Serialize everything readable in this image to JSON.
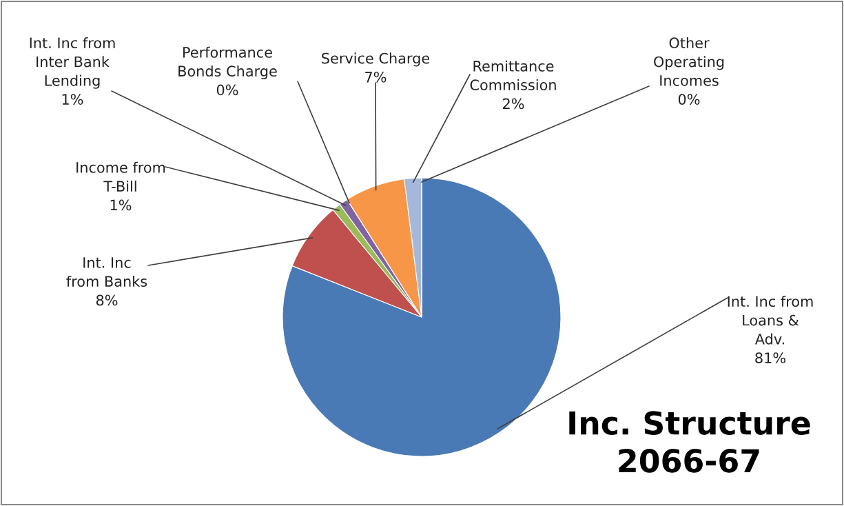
{
  "chart_data": {
    "type": "pie",
    "title": "Inc. Structure\n2066-67",
    "categories": [
      "Int. Inc from\nLoans &\nAdv.",
      "Int. Inc\nfrom Banks",
      "Income from\nT-Bill",
      "Int. Inc from\nInter Bank\nLending",
      "Performance\nBonds Charge",
      "Service Charge",
      "Remittance\nCommission",
      "Other\nOperating\nIncomes"
    ],
    "values": [
      81,
      8,
      1,
      1,
      0,
      7,
      2,
      0
    ],
    "value_labels": [
      "81%",
      "8%",
      "1%",
      "1%",
      "0%",
      "7%",
      "2%",
      "0%"
    ],
    "colors": [
      "#4a7ab5",
      "#c0504d",
      "#9bbb59",
      "#8064a2",
      "#4bacc6",
      "#f79646",
      "#a5b8dc",
      "#d99694"
    ],
    "legend": false
  }
}
